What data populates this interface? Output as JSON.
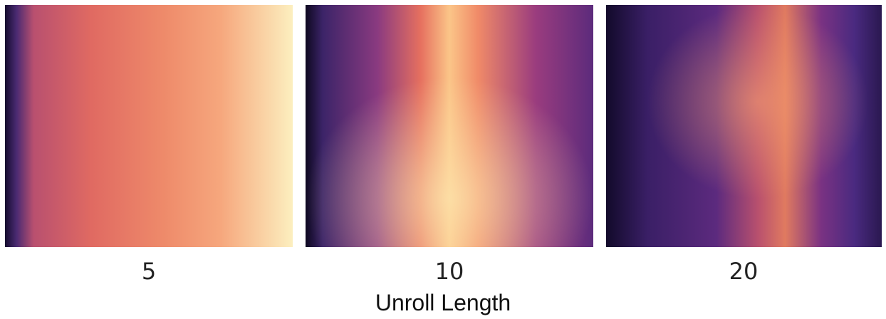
{
  "panels": [
    {
      "label": "5"
    },
    {
      "label": "10"
    },
    {
      "label": "20"
    }
  ],
  "xlabel": "Unroll Length"
}
